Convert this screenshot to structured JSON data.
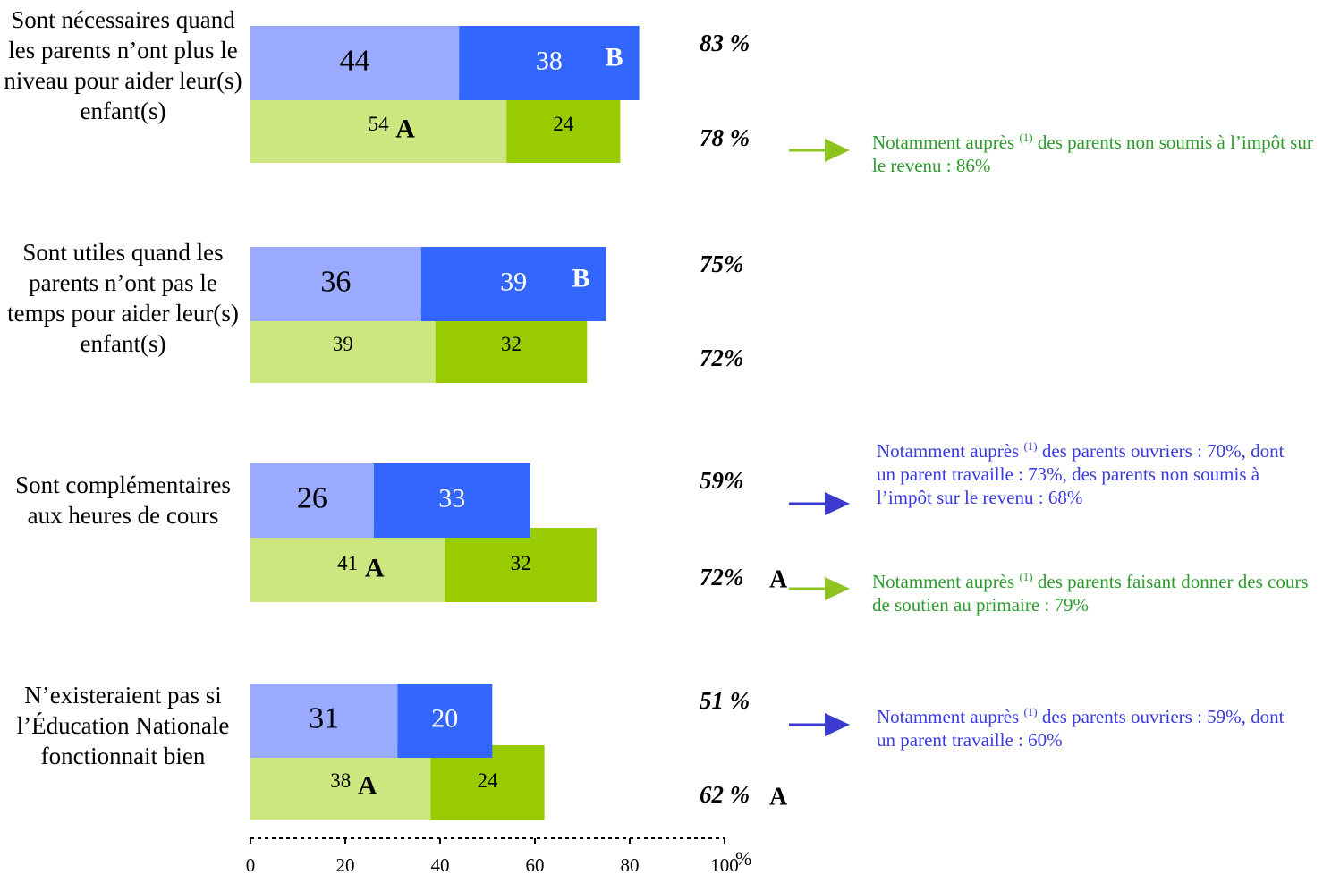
{
  "chart_data": {
    "type": "grouped-stacked-barh",
    "categories": [
      "Sont nécessaires quand les parents n’ont plus le niveau pour aider leur(s) enfant(s)",
      "Sont utiles quand les parents n’ont pas le temps pour aider leur(s) enfant(s)",
      "Sont complémentaires aux heures de cours",
      "N’existeraient pas si l’Éducation Nationale fonctionnait bien"
    ],
    "groups": [
      {
        "series": [
          {
            "color": "#99aaff",
            "text_color": "#000000",
            "values": [
              44,
              36,
              26,
              31
            ]
          },
          {
            "color": "#3366ff",
            "text_color": "#ffffff",
            "values": [
              38,
              39,
              33,
              20
            ],
            "sig_labels": [
              "B",
              "B",
              null,
              null
            ]
          }
        ],
        "total_labels": [
          "83 %",
          "75%",
          "59%",
          "51 %"
        ],
        "total_sig_labels": [
          null,
          null,
          null,
          null
        ]
      },
      {
        "series": [
          {
            "color": "#cce680",
            "text_color": "#000000",
            "values": [
              54,
              39,
              41,
              38
            ],
            "sig_labels": [
              "A",
              null,
              "A",
              "A"
            ]
          },
          {
            "color": "#99cc00",
            "text_color": "#000000",
            "values": [
              24,
              32,
              32,
              24
            ]
          }
        ],
        "total_labels": [
          "78 %",
          "72%",
          "72%",
          "62 %"
        ],
        "total_sig_labels": [
          null,
          null,
          "A",
          "A"
        ]
      }
    ],
    "xlim": [
      0,
      100
    ],
    "xticks": [
      0,
      20,
      40,
      60,
      80,
      100
    ],
    "x_unit": "%",
    "notes": [
      {
        "category": 0,
        "group": 1,
        "color": "#2e9a2e",
        "arrow_color": "#8fc31f",
        "before": "Notamment auprès ",
        "sup": "(1)",
        "after": " des parents non soumis à l’impôt sur le revenu : 86%"
      },
      {
        "category": 2,
        "group": 0,
        "color": "#3a3adf",
        "arrow_color": "#3a3ad0",
        "before": "Notamment auprès ",
        "sup": "(1)",
        "after": " des parents ouvriers : 70%, dont un parent travaille : 73%, des parents non soumis à l’impôt sur le revenu : 68%"
      },
      {
        "category": 2,
        "group": 1,
        "color": "#2e9a2e",
        "arrow_color": "#8fc31f",
        "before": "Notamment auprès ",
        "sup": "(1)",
        "after": " des parents faisant donner des cours de soutien au primaire : 79%"
      },
      {
        "category": 3,
        "group": 0,
        "color": "#3a3adf",
        "arrow_color": "#3a3ad0",
        "before": "Notamment auprès ",
        "sup": "(1)",
        "after": " des parents ouvriers : 59%, dont un parent travaille : 60%"
      }
    ]
  }
}
